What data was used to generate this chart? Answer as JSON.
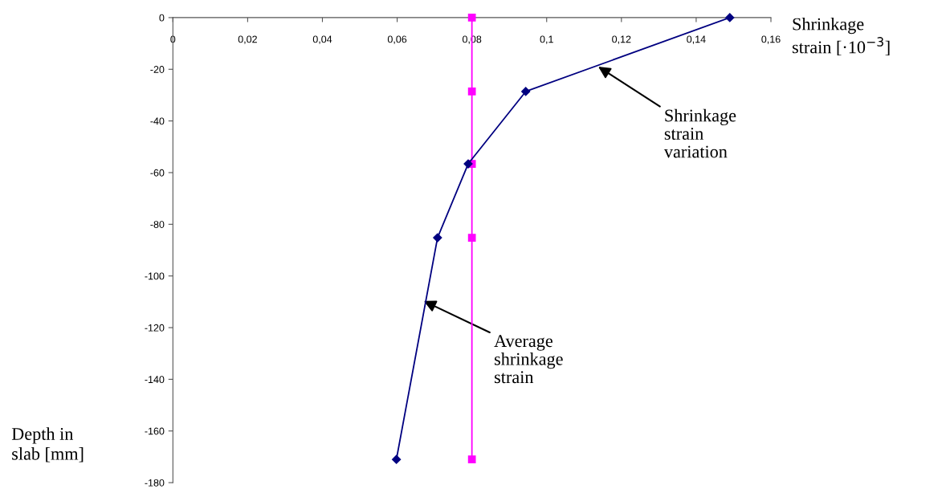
{
  "chart_data": {
    "type": "line",
    "xlabel": "Shrinkage\nstrain [·10$^{−3}$]",
    "ylabel": "Depth in\nslab [mm]",
    "xlim": [
      0,
      0.16
    ],
    "xticks": [
      0,
      {
        "value": 0.02,
        "label": "0,02"
      },
      {
        "value": 0.04,
        "label": "0,04"
      },
      {
        "value": 0.06,
        "label": "0,06"
      },
      {
        "value": 0.08,
        "label": "0,08"
      },
      {
        "value": 0.1,
        "label": "0,1"
      },
      {
        "value": 0.12,
        "label": "0,12"
      },
      {
        "value": 0.14,
        "label": "0,14"
      },
      {
        "value": 0.16,
        "label": "0,16"
      }
    ],
    "ylim": [
      -180,
      0
    ],
    "yticks": [
      -180,
      -160,
      -140,
      -120,
      -100,
      -80,
      -60,
      -40,
      -20,
      0
    ],
    "grid": false,
    "series": [
      {
        "color": "#000080",
        "marker": "diamond",
        "x": [
          0.149,
          0.0944,
          0.079,
          0.0708,
          0.0598
        ],
        "values": [
          0,
          -28.6,
          -56.6,
          -85.2,
          -171
        ]
      },
      {
        "color": "#ff00ff",
        "marker": "square",
        "x": [
          0.08,
          0.08,
          0.08,
          0.08,
          0.08
        ],
        "values": [
          0,
          -28.6,
          -56.6,
          -85.2,
          -171
        ]
      }
    ],
    "annotations": [
      {
        "text": "Shrinkage\nstrain\nvariation",
        "x": 0.1138,
        "y": -19
      },
      {
        "text": "Average\nshrinkage\nstrain",
        "x": 0.0671,
        "y": -109.7
      }
    ]
  }
}
